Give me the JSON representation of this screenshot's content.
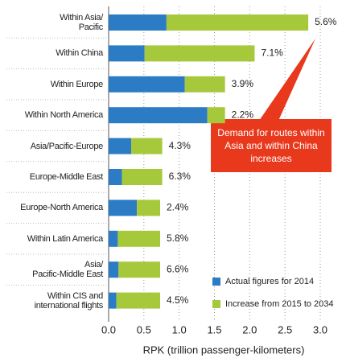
{
  "chart_data": {
    "type": "stacked-barh",
    "categories": [
      "Within Asia/\nPacific",
      "Within China",
      "Within Europe",
      "Within North America",
      "Asia/Pacific-Europe",
      "Europe-Middle East",
      "Europe-North America",
      "Within Latin America",
      "Asia/\nPacific-Middle East",
      "Within CIS and\ninternational flights"
    ],
    "series": [
      {
        "name": "Actual figures for 2014",
        "color": "#2b7cc4",
        "values": [
          0.82,
          0.51,
          1.08,
          1.4,
          0.32,
          0.19,
          0.4,
          0.13,
          0.14,
          0.11
        ]
      },
      {
        "name": "Increase from 2015 to 2034",
        "color": "#a6c93c",
        "values": [
          2.01,
          1.56,
          0.57,
          0.25,
          0.44,
          0.57,
          0.33,
          0.6,
          0.59,
          0.62
        ]
      }
    ],
    "growth_labels": [
      "5.6%",
      "7.1%",
      "3.9%",
      "2.2%",
      "4.3%",
      "6.3%",
      "2.4%",
      "5.8%",
      "6.6%",
      "4.5%"
    ],
    "xlim": [
      0,
      3.0
    ],
    "xticks": [
      {
        "value": 0,
        "label": "0.0"
      },
      0.5,
      {
        "value": 1,
        "label": "1.0"
      },
      1.5,
      {
        "value": 2,
        "label": "2.0"
      },
      2.5,
      {
        "value": 3,
        "label": "3.0"
      }
    ],
    "xlabel": "RPK (trillion passenger-kilometers)",
    "annotation": "Demand for routes within Asia and within China increases",
    "grid": true
  }
}
